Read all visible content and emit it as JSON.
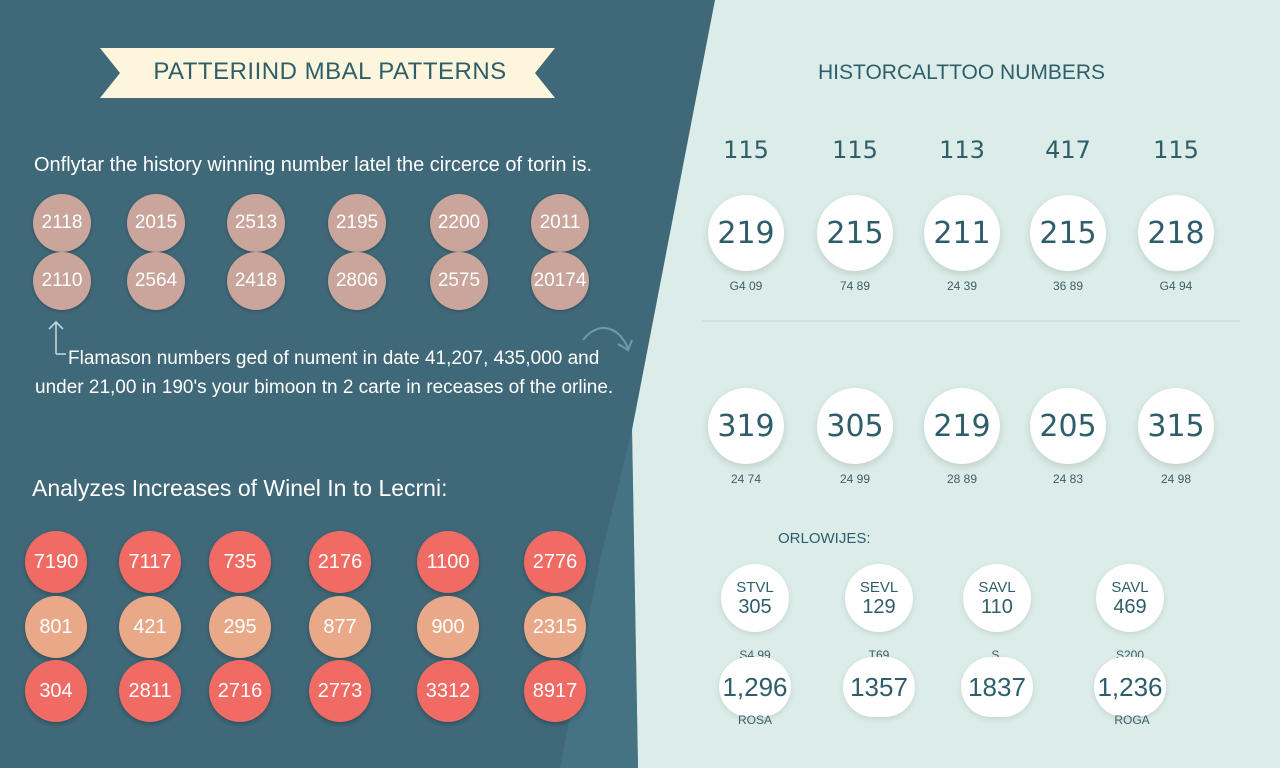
{
  "colors": {
    "left_bg": "#3f6878",
    "right_bg": "#dbece9",
    "banner_bg": "#fdf6dd",
    "title_teal": "#2f5e6b",
    "tan_circle": "#c9a59b",
    "coral": "#f06b63",
    "peach": "#e9a989"
  },
  "left": {
    "banner_title": "PATTERIIND MBAL PATTERNS",
    "intro_text": "Onflytar the history winning number latel the circerce of torin is.",
    "history_numbers": [
      "2118",
      "2015",
      "2513",
      "2195",
      "2200",
      "2011",
      "2110",
      "2564",
      "2418",
      "2806",
      "2575",
      "20174"
    ],
    "note_line1": "Flamason numbers ged of nument in date 41,207, 435,000 and",
    "note_line2": "under 21,00 in 190's your bimoon tn 2 carte in receases of the orline.",
    "section_heading": "Analyzes Increases of Winel In to Lecrni:",
    "increase_rows": [
      {
        "style": "coral",
        "values": [
          "7190",
          "7117",
          "735",
          "2176",
          "1100",
          "2776"
        ]
      },
      {
        "style": "peach",
        "values": [
          "801",
          "421",
          "295",
          "877",
          "900",
          "2315"
        ]
      },
      {
        "style": "coral",
        "values": [
          "304",
          "2811",
          "2716",
          "2773",
          "3312",
          "8917"
        ]
      }
    ]
  },
  "right": {
    "title": "HISTORCALTTOO NUMBERS",
    "top_numbers": [
      "115",
      "115",
      "113",
      "417",
      "115"
    ],
    "row1": {
      "values": [
        "219",
        "215",
        "211",
        "215",
        "218"
      ],
      "labels": [
        "G4 09",
        "74 89",
        "24 39",
        "36 89",
        "G4 94"
      ]
    },
    "row2": {
      "values": [
        "319",
        "305",
        "219",
        "205",
        "315"
      ],
      "labels": [
        "24 74",
        "24 99",
        "28 89",
        "24 83",
        "24 98"
      ]
    },
    "sub_heading": "ORLOWIJES:",
    "labeled_circles": [
      {
        "label": "STVL",
        "value": "305"
      },
      {
        "label": "SEVL",
        "value": "129"
      },
      {
        "label": "SAVL",
        "value": "110"
      },
      {
        "label": "SAVL",
        "value": "469"
      }
    ],
    "bottom_labels": [
      "S4.99",
      "T69",
      "S.",
      "S200"
    ],
    "bottom_values": [
      "1,296",
      "1357",
      "1837",
      "1,236"
    ],
    "footer_labels": [
      "ROSA",
      "ROGA"
    ]
  }
}
